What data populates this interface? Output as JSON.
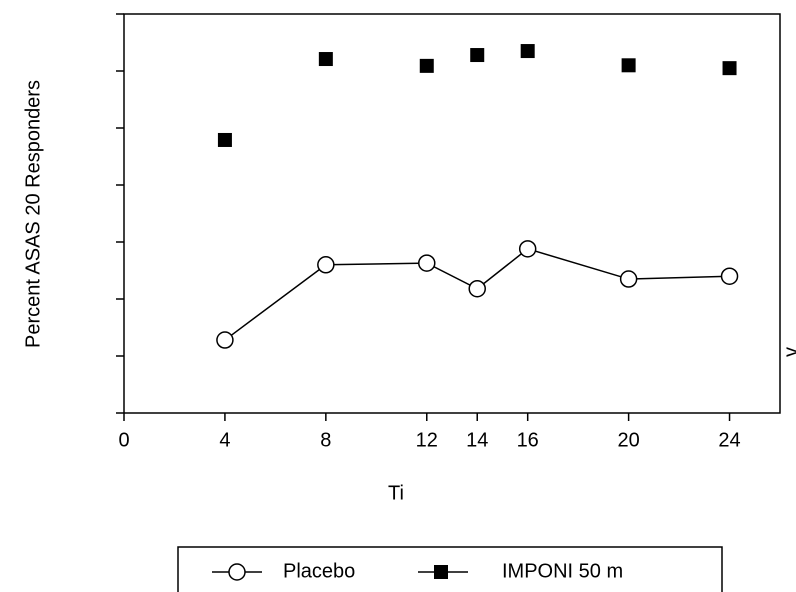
{
  "chart_data": {
    "type": "line",
    "x_label": "Ti",
    "y_label": "Percent ASAS 20 Responders",
    "annotation": "v",
    "x": [
      4,
      8,
      12,
      14,
      16,
      20,
      24
    ],
    "xlim": [
      0,
      26
    ],
    "xticks": [
      0,
      4,
      8,
      12,
      14,
      16,
      20,
      24
    ],
    "ylim": [
      0,
      70
    ],
    "yticks": [
      0,
      10,
      20,
      30,
      40,
      50,
      60,
      70
    ],
    "series": [
      {
        "name": "Placebo",
        "color": "#000000",
        "marker": "open-circle",
        "connected": true,
        "values": [
          12.8,
          26.0,
          26.3,
          21.8,
          28.8,
          23.5,
          24.0
        ]
      },
      {
        "name": "IMPONI 50 m",
        "color": "#000000",
        "marker": "filled-square",
        "connected": false,
        "values": [
          47.9,
          62.1,
          60.9,
          62.8,
          63.5,
          61.0,
          60.5
        ]
      }
    ]
  }
}
